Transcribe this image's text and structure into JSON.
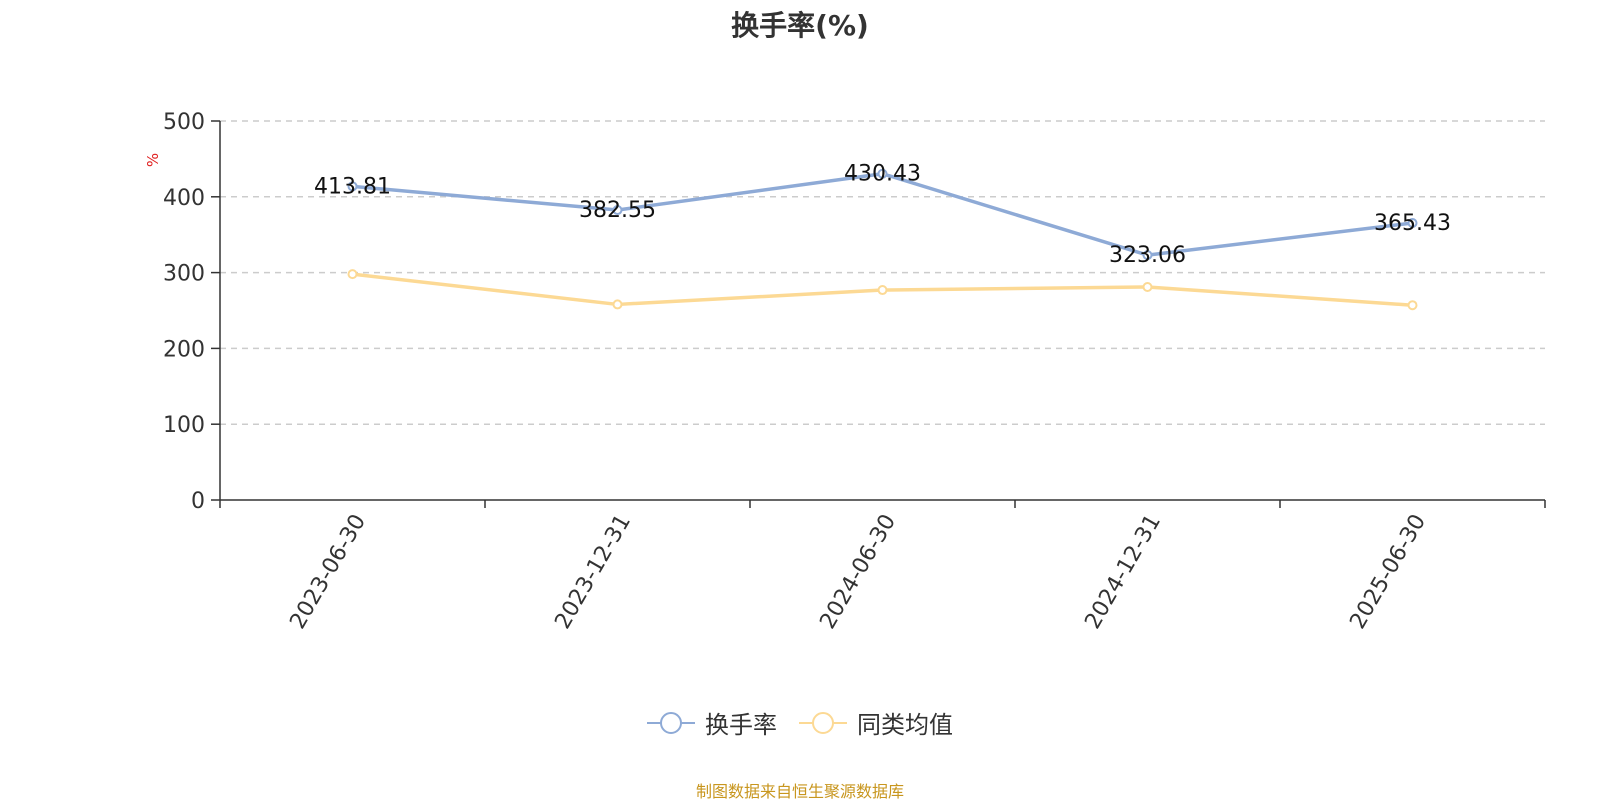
{
  "chart_data": {
    "type": "line",
    "title": "换手率(%)",
    "ylabel": "%",
    "ylim": [
      0,
      500
    ],
    "y_ticks": [
      0,
      100,
      200,
      300,
      400,
      500
    ],
    "grid": true,
    "legend_position": "bottom",
    "categories": [
      "2023-06-30",
      "2023-12-31",
      "2024-06-30",
      "2024-12-31",
      "2025-06-30"
    ],
    "series": [
      {
        "name": "换手率",
        "color": "#8eaad6",
        "values": [
          413.81,
          382.55,
          430.43,
          323.06,
          365.43
        ],
        "show_labels": true,
        "labels": [
          "413.81",
          "382.55",
          "430.43",
          "323.06",
          "365.43"
        ]
      },
      {
        "name": "同类均值",
        "color": "#fcd994",
        "values": [
          298,
          258,
          277,
          281,
          257
        ],
        "show_labels": false
      }
    ]
  },
  "ylabel_color": "#e02020",
  "source_note": "制图数据来自恒生聚源数据库",
  "source_note_color": "#c8961e"
}
